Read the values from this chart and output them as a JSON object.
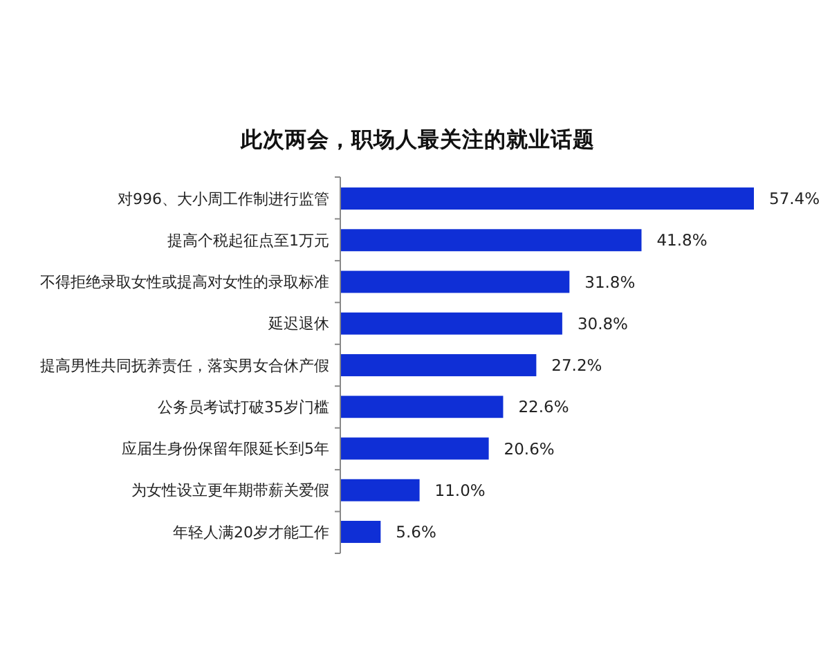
{
  "chart_data": {
    "type": "bar",
    "orientation": "horizontal",
    "title": "此次两会，职场人最关注的就业话题",
    "categories": [
      "对996、大小周工作制进行监管",
      "提高个税起征点至1万元",
      "不得拒绝录取女性或提高对女性的录取标准",
      "延迟退休",
      "提高男性共同抚养责任，落实男女合休产假",
      "公务员考试打破35岁门槛",
      "应届生身份保留年限延长到5年",
      "为女性设立更年期带薪关爱假",
      "年轻人满20岁才能工作"
    ],
    "values": [
      57.4,
      41.8,
      31.8,
      30.8,
      27.2,
      22.6,
      20.6,
      11.0,
      5.6
    ],
    "value_labels": [
      "57.4%",
      "41.8%",
      "31.8%",
      "30.8%",
      "27.2%",
      "22.6%",
      "20.6%",
      "11.0%",
      "5.6%"
    ],
    "color": "#0f2fd6"
  }
}
